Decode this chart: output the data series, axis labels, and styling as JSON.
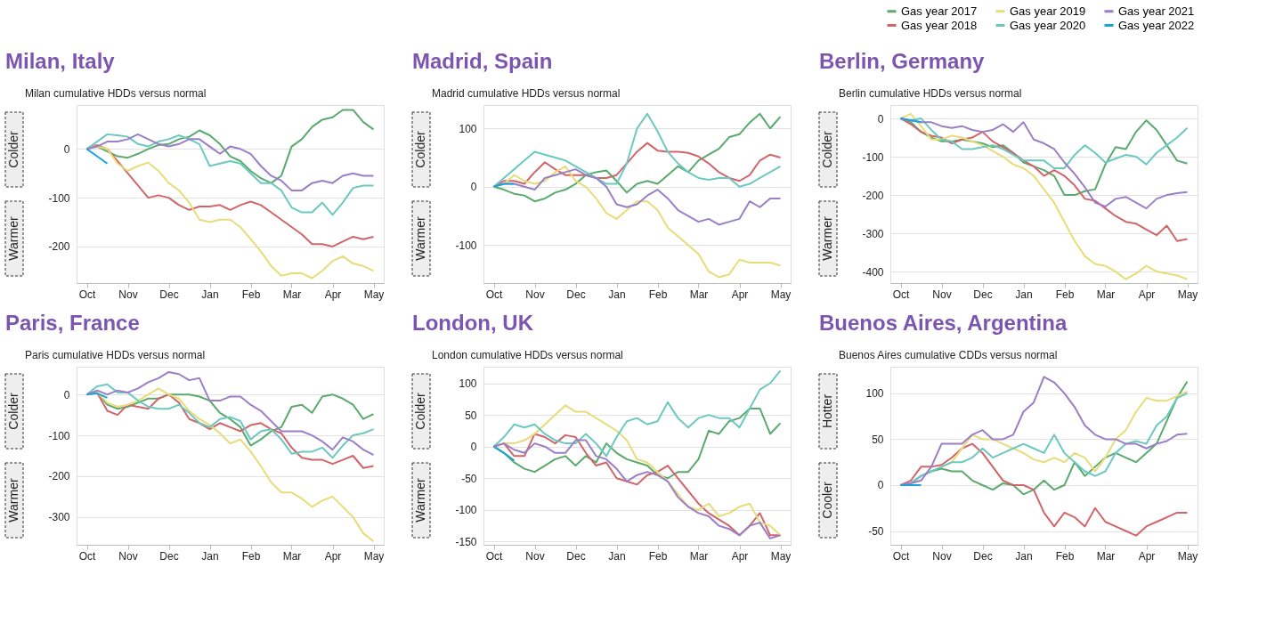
{
  "chart_data": [
    {
      "type": "line",
      "title": "Milan, Italy",
      "subtitle": "Milan cumulative HDDs versus normal",
      "annotations": [
        "Colder",
        "Warmer"
      ],
      "grid": "y",
      "legend": false,
      "categories": [
        "Oct",
        null,
        null,
        null,
        "Nov",
        null,
        null,
        null,
        "Dec",
        null,
        null,
        null,
        "Jan",
        null,
        null,
        null,
        "Feb",
        null,
        null,
        null,
        "Mar",
        null,
        null,
        null,
        "Apr",
        null,
        null,
        null,
        "May"
      ],
      "ylim": [
        -275,
        90
      ],
      "yticks": [
        -200,
        -100,
        0
      ],
      "series": [
        {
          "color": "#5aaa6e",
          "values": [
            0,
            5,
            -5,
            -15,
            -18,
            -10,
            0,
            8,
            10,
            20,
            25,
            38,
            28,
            10,
            -15,
            -25,
            -45,
            -60,
            -70,
            -55,
            5,
            20,
            45,
            60,
            65,
            80,
            80,
            55,
            40
          ]
        },
        {
          "color": "#d0656a",
          "values": [
            0,
            8,
            0,
            -25,
            -50,
            -75,
            -100,
            -95,
            -100,
            -115,
            -125,
            -118,
            -118,
            -115,
            -125,
            -115,
            -108,
            -115,
            -130,
            -145,
            -160,
            -175,
            -195,
            -195,
            -200,
            -190,
            -180,
            -185,
            -180
          ]
        },
        {
          "color": "#e8dc78",
          "values": [
            0,
            5,
            0,
            -30,
            -45,
            -35,
            -28,
            -45,
            -70,
            -85,
            -110,
            -145,
            -150,
            -145,
            -145,
            -160,
            -185,
            -210,
            -240,
            -260,
            -255,
            -255,
            -265,
            -250,
            -230,
            -220,
            -235,
            -240,
            -250
          ]
        },
        {
          "color": "#6cc9c0",
          "values": [
            0,
            15,
            30,
            28,
            25,
            10,
            5,
            15,
            20,
            28,
            20,
            10,
            -35,
            -30,
            -25,
            -30,
            -50,
            -70,
            -70,
            -85,
            -120,
            -130,
            -130,
            -110,
            -135,
            -110,
            -80,
            -75,
            -75
          ]
        },
        {
          "color": "#9b7fc6",
          "values": [
            0,
            5,
            15,
            15,
            20,
            30,
            20,
            10,
            5,
            10,
            20,
            20,
            5,
            -10,
            5,
            0,
            -10,
            -35,
            -55,
            -65,
            -85,
            -85,
            -70,
            -65,
            -70,
            -55,
            -50,
            -55,
            -55
          ]
        },
        {
          "color": "#1aa3d9",
          "values": [
            0,
            -15,
            -30,
            null,
            null,
            null,
            null,
            null,
            null,
            null,
            null,
            null,
            null,
            null,
            null,
            null,
            null,
            null,
            null,
            null,
            null,
            null,
            null,
            null,
            null,
            null,
            null,
            null,
            null
          ]
        }
      ]
    },
    {
      "type": "line",
      "title": "Madrid, Spain",
      "subtitle": "Madrid cumulative HDDs versus normal",
      "annotations": [
        "Colder",
        "Warmer"
      ],
      "grid": "y",
      "legend": false,
      "categories": [
        "Oct",
        null,
        null,
        null,
        "Nov",
        null,
        null,
        null,
        "Dec",
        null,
        null,
        null,
        "Jan",
        null,
        null,
        null,
        "Feb",
        null,
        null,
        null,
        "Mar",
        null,
        null,
        null,
        "Apr",
        null,
        null,
        null,
        "May"
      ],
      "ylim": [
        -165,
        140
      ],
      "yticks": [
        -100,
        0,
        100
      ],
      "series": [
        {
          "color": "#5aaa6e",
          "values": [
            0,
            -5,
            -12,
            -15,
            -25,
            -20,
            -10,
            -5,
            5,
            20,
            25,
            28,
            10,
            -10,
            5,
            10,
            5,
            20,
            35,
            25,
            45,
            55,
            65,
            85,
            90,
            110,
            125,
            100,
            120
          ]
        },
        {
          "color": "#d0656a",
          "values": [
            0,
            10,
            10,
            5,
            25,
            42,
            30,
            20,
            20,
            20,
            15,
            15,
            20,
            40,
            60,
            75,
            62,
            60,
            60,
            58,
            52,
            40,
            25,
            15,
            10,
            20,
            45,
            55,
            50
          ]
        },
        {
          "color": "#e8dc78",
          "values": [
            0,
            5,
            20,
            10,
            5,
            10,
            25,
            35,
            10,
            0,
            -20,
            -45,
            -55,
            -40,
            -25,
            -25,
            -40,
            -70,
            -85,
            -100,
            -115,
            -145,
            -155,
            -150,
            -125,
            -130,
            -130,
            -130,
            -135
          ]
        },
        {
          "color": "#6cc9c0",
          "values": [
            0,
            15,
            30,
            45,
            60,
            55,
            50,
            45,
            35,
            25,
            15,
            5,
            5,
            40,
            100,
            125,
            95,
            60,
            40,
            25,
            15,
            12,
            15,
            15,
            0,
            5,
            15,
            25,
            35
          ]
        },
        {
          "color": "#9b7fc6",
          "values": [
            0,
            5,
            5,
            0,
            -5,
            15,
            20,
            25,
            30,
            20,
            15,
            0,
            -30,
            -35,
            -30,
            -15,
            -5,
            -20,
            -40,
            -50,
            -60,
            -55,
            -65,
            -60,
            -55,
            -25,
            -35,
            -20,
            -20
          ]
        },
        {
          "color": "#1aa3d9",
          "values": [
            0,
            5,
            5,
            null,
            null,
            null,
            null,
            null,
            null,
            null,
            null,
            null,
            null,
            null,
            null,
            null,
            null,
            null,
            null,
            null,
            null,
            null,
            null,
            null,
            null,
            null,
            null,
            null,
            null
          ]
        }
      ]
    },
    {
      "type": "line",
      "title": "Berlin, Germany",
      "subtitle": "Berlin cumulative HDDs versus normal",
      "annotations": [
        "Colder",
        "Warmer"
      ],
      "grid": "y",
      "legend": "top right",
      "categories": [
        "Oct",
        null,
        null,
        null,
        "Nov",
        null,
        null,
        null,
        "Dec",
        null,
        null,
        null,
        "Jan",
        null,
        null,
        null,
        "Feb",
        null,
        null,
        null,
        "Mar",
        null,
        null,
        null,
        "Apr",
        null,
        null,
        null,
        "May"
      ],
      "ylim": [
        -430,
        35
      ],
      "yticks": [
        -400,
        -300,
        -200,
        -100,
        0
      ],
      "series": [
        {
          "name": "Gas year 2017",
          "color": "#5aaa6e",
          "values": [
            0,
            -10,
            -35,
            -50,
            -60,
            -60,
            -55,
            -60,
            -65,
            -75,
            -70,
            -90,
            -115,
            -125,
            -135,
            -150,
            -200,
            -200,
            -190,
            -185,
            -120,
            -75,
            -80,
            -35,
            -5,
            -30,
            -70,
            -110,
            -118
          ]
        },
        {
          "name": "Gas year 2018",
          "color": "#d0656a",
          "values": [
            0,
            -15,
            -35,
            -45,
            -50,
            -65,
            -55,
            -50,
            -35,
            -60,
            -75,
            -90,
            -110,
            -125,
            -150,
            -135,
            -150,
            -175,
            -210,
            -215,
            -235,
            -255,
            -270,
            -275,
            -290,
            -305,
            -280,
            -320,
            -315
          ]
        },
        {
          "name": "Gas year 2019",
          "color": "#e8dc78",
          "values": [
            0,
            12,
            -20,
            -55,
            -55,
            -45,
            -50,
            -60,
            -70,
            -85,
            -100,
            -120,
            -130,
            -150,
            -185,
            -220,
            -270,
            -320,
            -360,
            -380,
            -385,
            -400,
            -420,
            -405,
            -385,
            -400,
            -405,
            -410,
            -420
          ]
        },
        {
          "name": "Gas year 2020",
          "color": "#6cc9c0",
          "values": [
            0,
            -5,
            0,
            -30,
            -55,
            -60,
            -80,
            -80,
            -75,
            -70,
            -80,
            -95,
            -110,
            -110,
            -110,
            -130,
            -130,
            -95,
            -70,
            -90,
            -115,
            -105,
            -95,
            -100,
            -120,
            -90,
            -70,
            -50,
            -25
          ]
        },
        {
          "name": "Gas year 2021",
          "color": "#9b7fc6",
          "values": [
            0,
            -5,
            -10,
            -10,
            -20,
            -25,
            -20,
            -30,
            -35,
            -30,
            -15,
            -35,
            -10,
            -55,
            -65,
            -80,
            -115,
            -145,
            -180,
            -220,
            -230,
            -210,
            -205,
            -220,
            -235,
            -210,
            -200,
            -195,
            -192
          ]
        },
        {
          "name": "Gas year 2022",
          "color": "#1aa3d9",
          "values": [
            0,
            -5,
            -10,
            null,
            null,
            null,
            null,
            null,
            null,
            null,
            null,
            null,
            null,
            null,
            null,
            null,
            null,
            null,
            null,
            null,
            null,
            null,
            null,
            null,
            null,
            null,
            null,
            null,
            null
          ]
        }
      ]
    },
    {
      "type": "line",
      "title": "Paris, France",
      "subtitle": "Paris cumulative HDDs versus normal",
      "annotations": [
        "Colder",
        "Warmer"
      ],
      "grid": "y",
      "legend": false,
      "categories": [
        "Oct",
        null,
        null,
        null,
        "Nov",
        null,
        null,
        null,
        "Dec",
        null,
        null,
        null,
        "Jan",
        null,
        null,
        null,
        "Feb",
        null,
        null,
        null,
        "Mar",
        null,
        null,
        null,
        "Apr",
        null,
        null,
        null,
        "May"
      ],
      "ylim": [
        -368,
        68
      ],
      "yticks": [
        -300,
        -200,
        -100,
        0
      ],
      "series": [
        {
          "color": "#5aaa6e",
          "values": [
            0,
            5,
            -25,
            -35,
            -30,
            -20,
            -10,
            -10,
            0,
            0,
            0,
            -5,
            -15,
            -45,
            -60,
            -80,
            -125,
            -110,
            -90,
            -80,
            -30,
            -25,
            -45,
            -5,
            0,
            -10,
            -25,
            -60,
            -48
          ]
        },
        {
          "color": "#d0656a",
          "values": [
            0,
            5,
            -40,
            -50,
            -25,
            -30,
            -35,
            -10,
            0,
            -20,
            -60,
            -70,
            -85,
            -70,
            -80,
            -90,
            -75,
            -70,
            -85,
            -95,
            -130,
            -155,
            -160,
            -160,
            -170,
            -160,
            -150,
            -180,
            -175
          ]
        },
        {
          "color": "#e8dc78",
          "values": [
            0,
            5,
            -20,
            -30,
            -25,
            -15,
            0,
            15,
            0,
            -10,
            -40,
            -60,
            -75,
            -95,
            -120,
            -110,
            -140,
            -175,
            -215,
            -240,
            -240,
            -255,
            -275,
            -260,
            -250,
            -275,
            -300,
            -340,
            -360
          ]
        },
        {
          "color": "#6cc9c0",
          "values": [
            0,
            20,
            25,
            5,
            5,
            -15,
            -30,
            -35,
            -35,
            -25,
            -45,
            -70,
            -80,
            -60,
            -55,
            -65,
            -110,
            -90,
            -85,
            -110,
            -145,
            -140,
            -140,
            -130,
            -155,
            -125,
            -100,
            -95,
            -85
          ]
        },
        {
          "color": "#9b7fc6",
          "values": [
            0,
            10,
            0,
            10,
            5,
            15,
            30,
            40,
            55,
            50,
            35,
            40,
            -15,
            -15,
            -5,
            -5,
            -25,
            -40,
            -65,
            -90,
            -90,
            -90,
            -100,
            -115,
            -135,
            -105,
            -115,
            -135,
            -148
          ]
        },
        {
          "color": "#1aa3d9",
          "values": [
            0,
            3,
            -8,
            null,
            null,
            null,
            null,
            null,
            null,
            null,
            null,
            null,
            null,
            null,
            null,
            null,
            null,
            null,
            null,
            null,
            null,
            null,
            null,
            null,
            null,
            null,
            null,
            null,
            null
          ]
        }
      ]
    },
    {
      "type": "line",
      "title": "London, UK",
      "subtitle": "London cumulative HDDs versus normal",
      "annotations": [
        "Colder",
        "Warmer"
      ],
      "grid": "y",
      "legend": false,
      "categories": [
        "Oct",
        null,
        null,
        null,
        "Nov",
        null,
        null,
        null,
        "Dec",
        null,
        null,
        null,
        "Jan",
        null,
        null,
        null,
        "Feb",
        null,
        null,
        null,
        "Mar",
        null,
        null,
        null,
        "Apr",
        null,
        null,
        null,
        "May"
      ],
      "ylim": [
        -155,
        126
      ],
      "yticks": [
        -150,
        -100,
        -50,
        0,
        50,
        100
      ],
      "series": [
        {
          "color": "#5aaa6e",
          "values": [
            0,
            -10,
            -25,
            -35,
            -40,
            -30,
            -20,
            -15,
            -30,
            -15,
            -25,
            5,
            -10,
            -20,
            -25,
            -30,
            -45,
            -50,
            -40,
            -40,
            -20,
            25,
            20,
            40,
            45,
            60,
            60,
            20,
            37
          ]
        },
        {
          "color": "#d0656a",
          "values": [
            0,
            5,
            -15,
            -15,
            20,
            15,
            5,
            18,
            15,
            -10,
            -30,
            -25,
            -50,
            -55,
            -60,
            -45,
            -40,
            -30,
            -50,
            -70,
            -90,
            -105,
            -115,
            -125,
            -140,
            -125,
            -105,
            -140,
            -140
          ]
        },
        {
          "color": "#e8dc78",
          "values": [
            0,
            5,
            5,
            10,
            20,
            35,
            50,
            65,
            55,
            55,
            45,
            35,
            25,
            10,
            -20,
            -25,
            -40,
            -55,
            -75,
            -95,
            -100,
            -90,
            -110,
            -105,
            -95,
            -90,
            -120,
            -125,
            -140
          ]
        },
        {
          "color": "#6cc9c0",
          "values": [
            0,
            15,
            35,
            30,
            35,
            20,
            10,
            5,
            5,
            20,
            5,
            -15,
            15,
            40,
            45,
            35,
            40,
            70,
            45,
            30,
            45,
            50,
            45,
            45,
            30,
            60,
            90,
            100,
            120
          ]
        },
        {
          "color": "#9b7fc6",
          "values": [
            0,
            5,
            -5,
            -10,
            5,
            0,
            -10,
            -10,
            10,
            10,
            -15,
            -20,
            -35,
            -55,
            -45,
            -40,
            -45,
            -55,
            -80,
            -95,
            -105,
            -110,
            -125,
            -130,
            -140,
            -125,
            -120,
            -145,
            -140
          ]
        },
        {
          "color": "#1aa3d9",
          "values": [
            0,
            -10,
            -22,
            null,
            null,
            null,
            null,
            null,
            null,
            null,
            null,
            null,
            null,
            null,
            null,
            null,
            null,
            null,
            null,
            null,
            null,
            null,
            null,
            null,
            null,
            null,
            null,
            null,
            null
          ]
        }
      ]
    },
    {
      "type": "line",
      "title": "Buenos Aires, Argentina",
      "subtitle": "Buenos Aires cumulative CDDs versus normal",
      "annotations": [
        "Hotter",
        "Cooler"
      ],
      "grid": "y",
      "legend": false,
      "categories": [
        "Oct",
        null,
        null,
        null,
        "Nov",
        null,
        null,
        null,
        "Dec",
        null,
        null,
        null,
        "Jan",
        null,
        null,
        null,
        "Feb",
        null,
        null,
        null,
        "Mar",
        null,
        null,
        null,
        "Apr",
        null,
        null,
        null,
        "May"
      ],
      "ylim": [
        -65,
        129
      ],
      "yticks": [
        -50,
        0,
        50,
        100
      ],
      "series": [
        {
          "color": "#5aaa6e",
          "values": [
            0,
            2,
            10,
            15,
            18,
            15,
            15,
            5,
            0,
            -5,
            2,
            0,
            -10,
            -5,
            5,
            -5,
            0,
            25,
            10,
            20,
            30,
            35,
            30,
            25,
            35,
            45,
            70,
            95,
            113
          ]
        },
        {
          "color": "#d0656a",
          "values": [
            0,
            5,
            20,
            20,
            22,
            30,
            40,
            45,
            35,
            20,
            5,
            0,
            0,
            -5,
            -30,
            -45,
            -30,
            -35,
            -45,
            -25,
            -40,
            -45,
            -50,
            -55,
            -45,
            -40,
            -35,
            -30,
            -30
          ]
        },
        {
          "color": "#e8dc78",
          "values": [
            null,
            null,
            null,
            null,
            20,
            25,
            40,
            55,
            50,
            50,
            45,
            40,
            35,
            28,
            25,
            30,
            25,
            35,
            30,
            15,
            30,
            50,
            60,
            80,
            95,
            92,
            92,
            97,
            102
          ]
        },
        {
          "color": "#6cc9c0",
          "values": [
            0,
            2,
            10,
            15,
            20,
            25,
            25,
            30,
            40,
            30,
            35,
            40,
            45,
            40,
            35,
            55,
            35,
            25,
            15,
            10,
            15,
            35,
            45,
            48,
            45,
            65,
            75,
            95,
            100
          ]
        },
        {
          "color": "#9b7fc6",
          "values": [
            0,
            2,
            5,
            20,
            45,
            45,
            45,
            55,
            60,
            50,
            50,
            55,
            80,
            90,
            118,
            112,
            100,
            85,
            65,
            55,
            50,
            50,
            45,
            45,
            40,
            45,
            48,
            55,
            56
          ]
        },
        {
          "color": "#1aa3d9",
          "values": [
            0,
            0,
            0,
            null,
            null,
            null,
            null,
            null,
            null,
            null,
            null,
            null,
            null,
            null,
            null,
            null,
            null,
            null,
            null,
            null,
            null,
            null,
            null,
            null,
            null,
            null,
            null,
            null,
            null
          ]
        }
      ]
    }
  ]
}
